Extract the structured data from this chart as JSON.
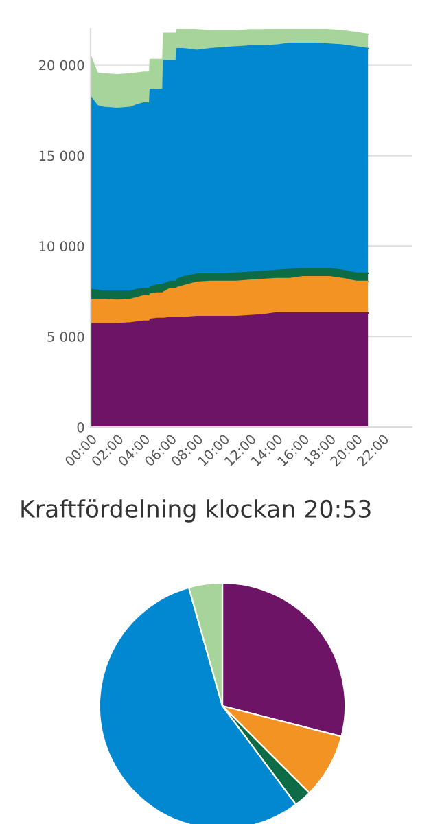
{
  "chart_data": [
    {
      "type": "area",
      "stacked": true,
      "grid": "y",
      "x": [
        0,
        0.5,
        1,
        2,
        3,
        3.5,
        4,
        4.45,
        4.5,
        5,
        5.45,
        5.5,
        6,
        6.45,
        6.5,
        7,
        8,
        9,
        10,
        11,
        12,
        13,
        14,
        15,
        16,
        17,
        18,
        19,
        20,
        20.9
      ],
      "series": [
        {
          "color": "#6e1467",
          "values": [
            5700,
            5700,
            5700,
            5700,
            5750,
            5800,
            5850,
            5850,
            5950,
            6000,
            6000,
            6000,
            6050,
            6050,
            6050,
            6050,
            6100,
            6100,
            6100,
            6100,
            6150,
            6200,
            6300,
            6300,
            6300,
            6300,
            6300,
            6300,
            6300,
            6300
          ]
        },
        {
          "color": "#f39324",
          "values": [
            1350,
            1350,
            1350,
            1300,
            1300,
            1350,
            1400,
            1400,
            1400,
            1400,
            1400,
            1450,
            1600,
            1600,
            1650,
            1750,
            1900,
            1950,
            1950,
            1950,
            1950,
            1950,
            1900,
            1900,
            2000,
            2000,
            2000,
            1900,
            1750,
            1750
          ]
        },
        {
          "color": "#0d6b45",
          "values": [
            550,
            500,
            450,
            500,
            450,
            450,
            400,
            400,
            400,
            450,
            450,
            450,
            400,
            400,
            450,
            500,
            450,
            400,
            400,
            450,
            450,
            450,
            450,
            500,
            450,
            450,
            450,
            450,
            450,
            450
          ]
        },
        {
          "color": "#0288d1",
          "values": [
            10650,
            10200,
            10150,
            10100,
            10150,
            10200,
            10250,
            10250,
            10900,
            10800,
            10800,
            12350,
            12200,
            12200,
            12750,
            12600,
            12350,
            12450,
            12500,
            12500,
            12500,
            12450,
            12450,
            12500,
            12450,
            12450,
            12400,
            12450,
            12500,
            12400
          ]
        },
        {
          "color": "#a7d49b",
          "values": [
            2250,
            1800,
            1850,
            1850,
            1850,
            1750,
            1700,
            1700,
            1650,
            1650,
            1650,
            1500,
            1500,
            1500,
            1100,
            1100,
            1150,
            1000,
            950,
            900,
            900,
            900,
            900,
            800,
            800,
            800,
            800,
            800,
            800,
            800
          ]
        }
      ],
      "xlim": [
        0,
        24.2
      ],
      "xticks": [
        {
          "value": 0,
          "label": "00:00"
        },
        {
          "value": 2,
          "label": "02:00"
        },
        {
          "value": 4,
          "label": "04:00"
        },
        {
          "value": 6,
          "label": "06:00"
        },
        {
          "value": 8,
          "label": "08:00"
        },
        {
          "value": 10,
          "label": "10:00"
        },
        {
          "value": 12,
          "label": "12:00"
        },
        {
          "value": 14,
          "label": "14:00"
        },
        {
          "value": 16,
          "label": "16:00"
        },
        {
          "value": 18,
          "label": "18:00"
        },
        {
          "value": 20,
          "label": "20:00"
        },
        {
          "value": 22,
          "label": "22:00"
        }
      ],
      "ylim": [
        0,
        22000
      ],
      "yticks": [
        0,
        {
          "value": 5000,
          "label": "5 000"
        },
        {
          "value": 10000,
          "label": "10 000"
        },
        {
          "value": 15000,
          "label": "15 000"
        },
        {
          "value": 20000,
          "label": "20 000"
        }
      ]
    },
    {
      "type": "pie",
      "title": "Kraftfördelning klockan 20:53",
      "categories": [
        null,
        null,
        null,
        null,
        null
      ],
      "values": [
        29,
        8.5,
        2.3,
        55.8,
        4.4
      ],
      "colors": [
        "#6e1467",
        "#f39324",
        "#0d6b45",
        "#0288d1",
        "#a7d49b"
      ]
    }
  ]
}
